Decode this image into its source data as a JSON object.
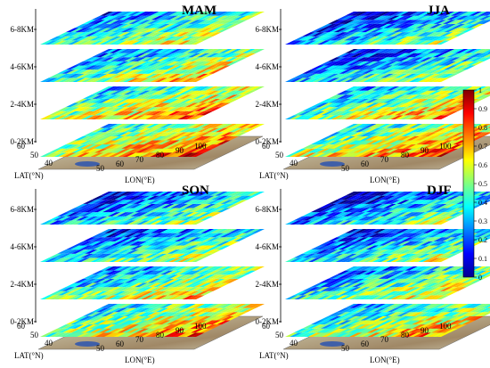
{
  "chart_data": {
    "type": "heatmap",
    "panels": [
      {
        "title": "MAM",
        "layers": [
          "6-8KM",
          "4-6KM",
          "2-4KM",
          "0-2KM"
        ],
        "lat_label": "LAT(°N)",
        "lon_label": "LON(°E)",
        "lat_ticks": [
          "60",
          "50",
          "40"
        ],
        "lon_ticks": [
          "50",
          "60",
          "70",
          "80",
          "90",
          "100"
        ],
        "layer_intensity": [
          0.4,
          0.45,
          0.55,
          0.6
        ]
      },
      {
        "title": "JJA",
        "layers": [
          "6-8KM",
          "4-6KM",
          "2-4KM",
          "0-2KM"
        ],
        "lat_label": "LAT(°N)",
        "lon_label": "LON(°E)",
        "lat_ticks": [
          "60",
          "50",
          "40"
        ],
        "lon_ticks": [
          "50",
          "60",
          "70",
          "80",
          "90",
          "100"
        ],
        "layer_intensity": [
          0.3,
          0.32,
          0.5,
          0.58
        ]
      },
      {
        "title": "SON",
        "layers": [
          "6-8KM",
          "4-6KM",
          "2-4KM",
          "0-2KM"
        ],
        "lat_label": "LAT(°N)",
        "lon_label": "LON(°E)",
        "lat_ticks": [
          "60",
          "50",
          "40"
        ],
        "lon_ticks": [
          "50",
          "60",
          "70",
          "80",
          "90",
          "100"
        ],
        "layer_intensity": [
          0.3,
          0.34,
          0.45,
          0.55
        ]
      },
      {
        "title": "DJF",
        "layers": [
          "6-8KM",
          "4-6KM",
          "2-4KM",
          "0-2KM"
        ],
        "lat_label": "LAT(°N)",
        "lon_label": "LON(°E)",
        "lat_ticks": [
          "60",
          "50",
          "40"
        ],
        "lon_ticks": [
          "50",
          "60",
          "70",
          "80",
          "90",
          "100"
        ],
        "layer_intensity": [
          0.28,
          0.33,
          0.42,
          0.5
        ]
      }
    ],
    "colorbar": {
      "min": 0,
      "max": 1,
      "ticks": [
        "1",
        "0.9",
        "0.8",
        "0.7",
        "0.6",
        "0.5",
        "0.4",
        "0.3",
        "0.2",
        "0.1",
        "0"
      ],
      "colormap": "jet"
    }
  }
}
